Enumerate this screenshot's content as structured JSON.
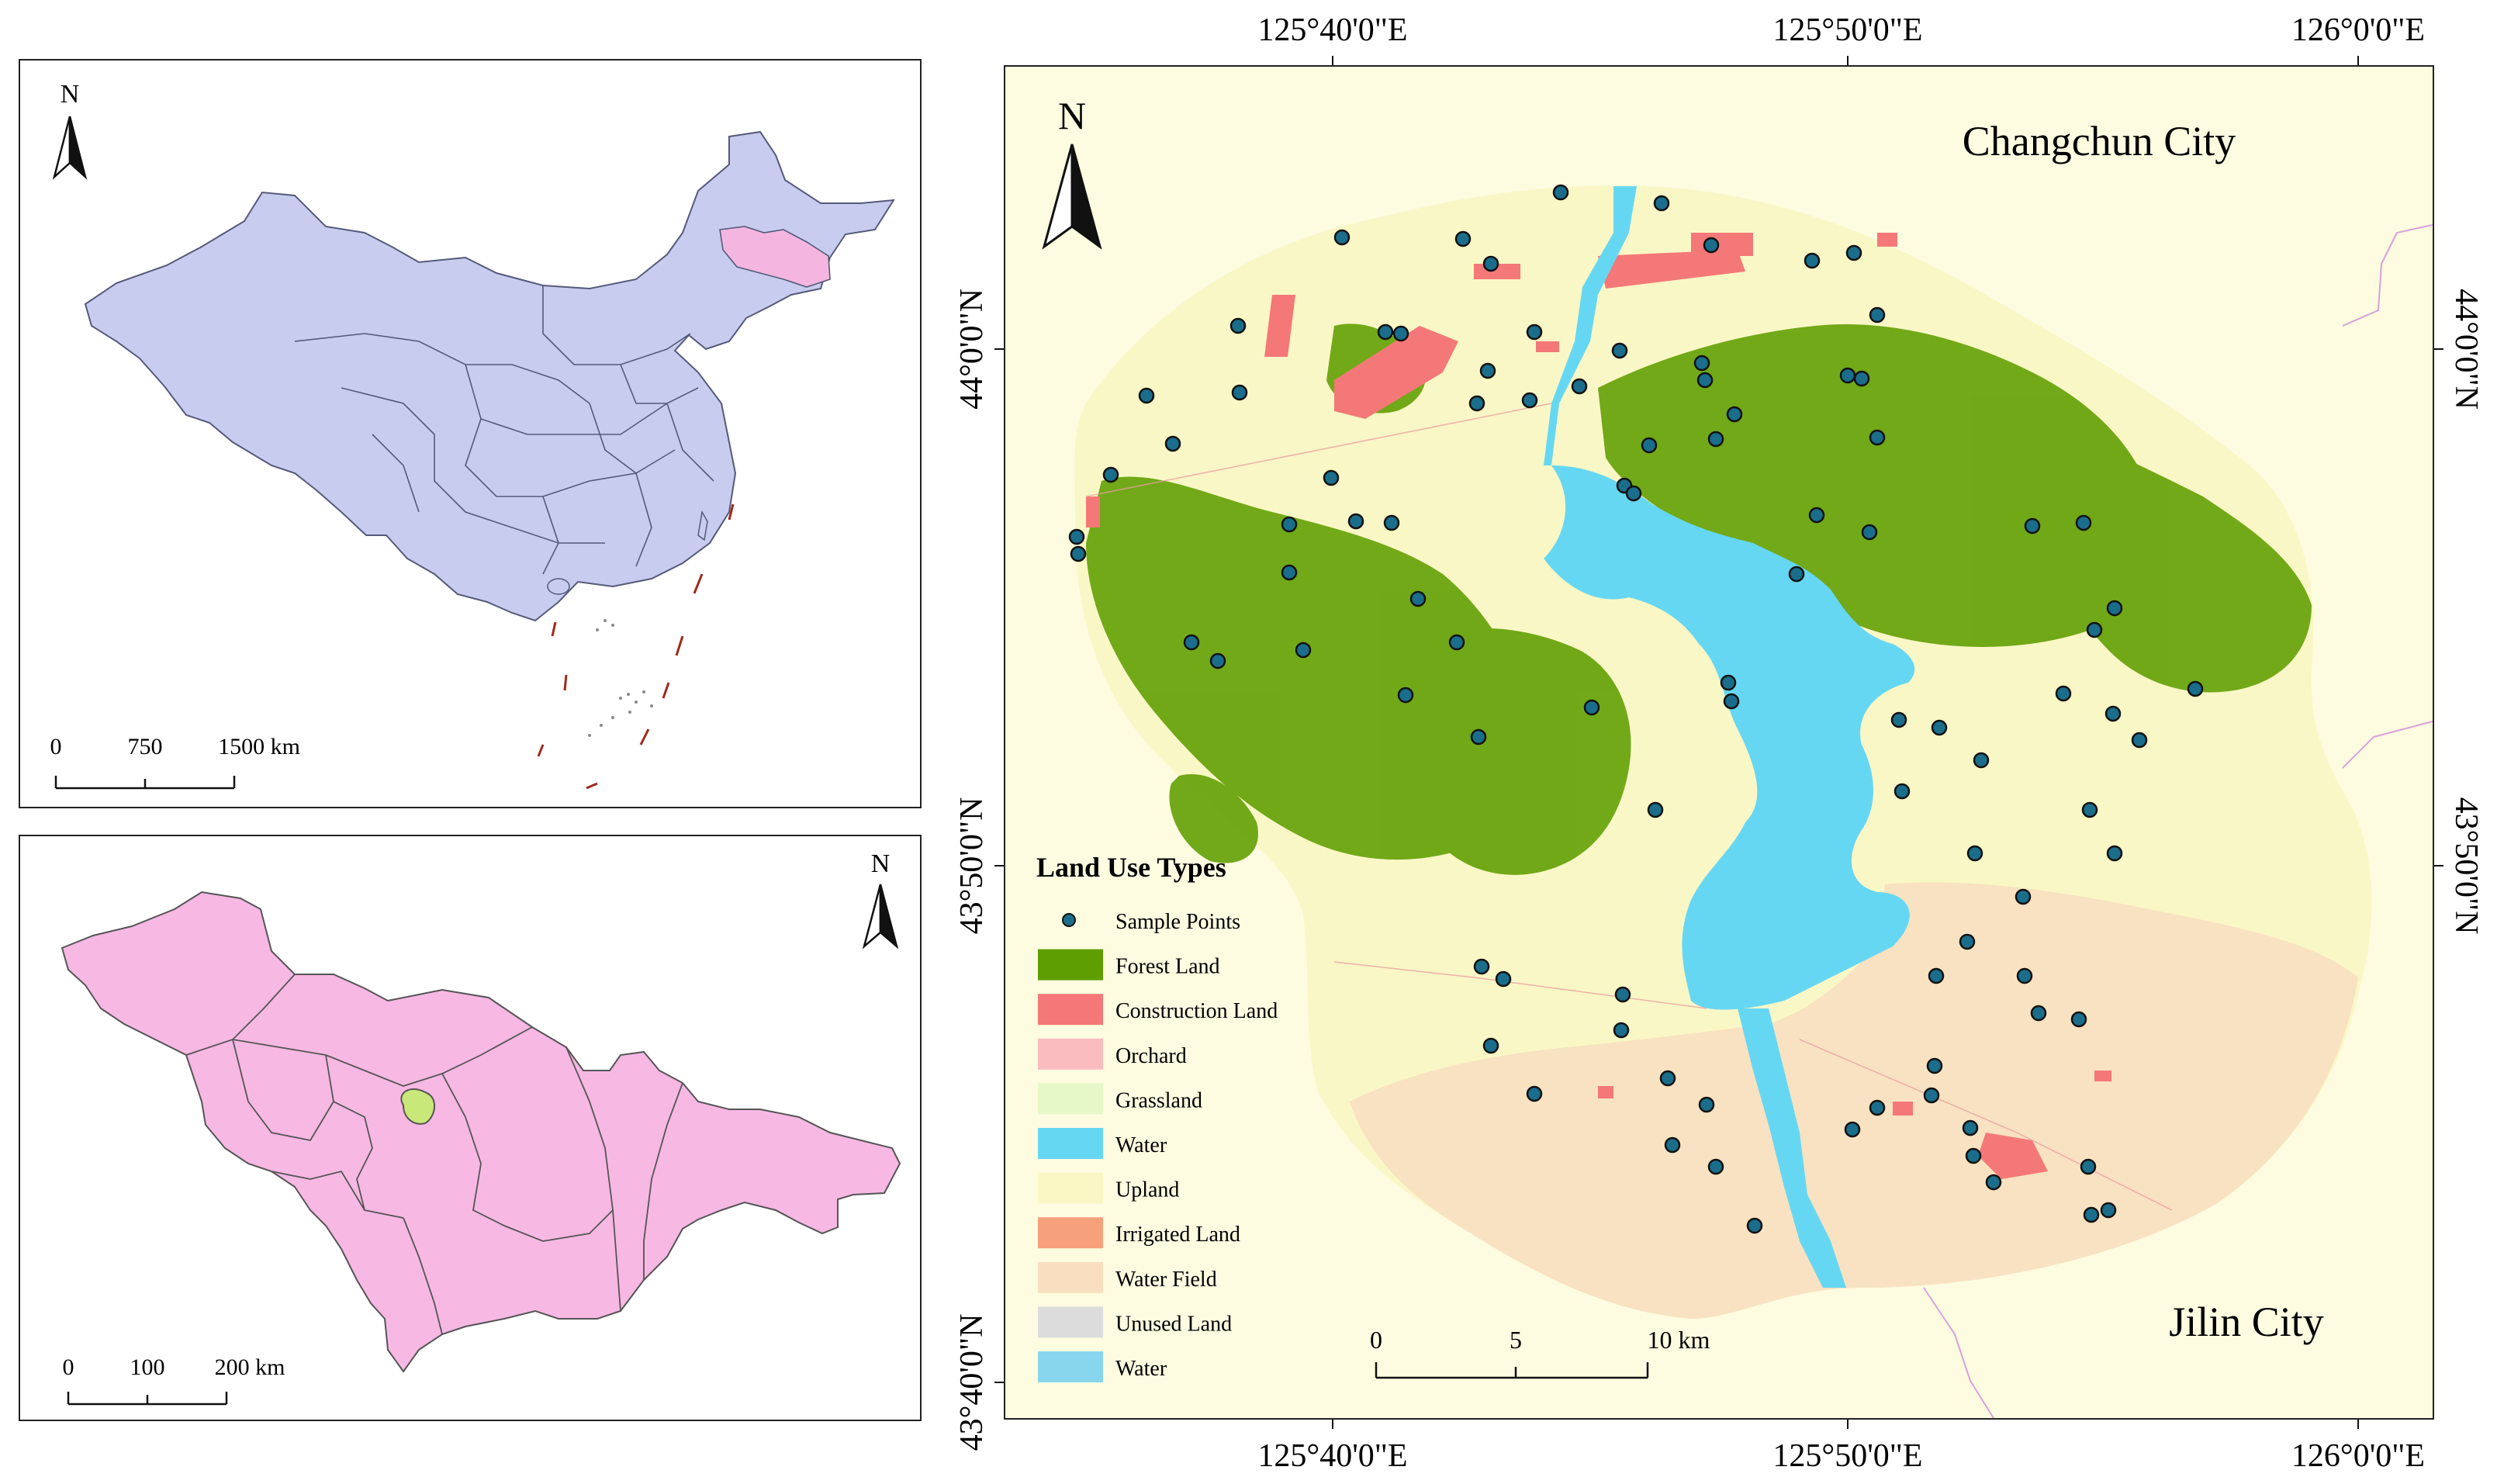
{
  "china_inset": {
    "north_label": "N",
    "scale_labels": [
      "0",
      "750",
      "1500 km"
    ],
    "colors": {
      "land": "#c8cdf0",
      "highlight": "#f4b6e0",
      "border": "#555a7a",
      "dashline": "#9e2a1c"
    }
  },
  "jilin_inset": {
    "north_label": "N",
    "scale_labels": [
      "0",
      "100",
      "200 km"
    ],
    "colors": {
      "land": "#f7b8e4",
      "study_area": "#c9e87a",
      "border": "#555"
    }
  },
  "main_map": {
    "north_label": "N",
    "top_axis_labels": [
      "125°40'0\"E",
      "125°50'0\"E",
      "126°0'0\"E"
    ],
    "bottom_axis_labels": [
      "125°40'0\"E",
      "125°50'0\"E",
      "126°0'0\"E"
    ],
    "left_axis_labels": [
      "44°0'0\"N",
      "43°50'0\"N",
      "43°40'0\"N"
    ],
    "right_axis_labels": [
      "44°0'0\"N",
      "43°50'0\"N"
    ],
    "place_labels": {
      "changchun": "Changchun City",
      "jilin": "Jilin City"
    },
    "scale_labels": [
      "0",
      "5",
      "10 km"
    ],
    "colors": {
      "background": "#fdfbe0",
      "upland": "#faf7c6",
      "forest": "#5e9e00",
      "water": "#66d7f2",
      "water_field": "#f7dfc0",
      "construction": "#f47878",
      "sample_point": "#1a6e8c",
      "boundary": "#d9a0d9"
    }
  },
  "legend": {
    "title": "Land Use Types",
    "items": [
      {
        "label": "Sample Points",
        "kind": "point",
        "color": "#1a6e8c"
      },
      {
        "label": "Forest Land",
        "kind": "swatch",
        "color": "#5e9e00"
      },
      {
        "label": "Construction Land",
        "kind": "swatch",
        "color": "#f47878"
      },
      {
        "label": "Orchard",
        "kind": "swatch",
        "color": "#fbbcc0"
      },
      {
        "label": "Grassland",
        "kind": "swatch",
        "color": "#e6f7c8"
      },
      {
        "label": "Water",
        "kind": "swatch",
        "color": "#66d7f2"
      },
      {
        "label": "Upland",
        "kind": "swatch",
        "color": "#fbf7c4"
      },
      {
        "label": "Irrigated Land",
        "kind": "swatch",
        "color": "#f7a07c"
      },
      {
        "label": "Water Field",
        "kind": "swatch",
        "color": "#f9dfc0"
      },
      {
        "label": "Unused Land",
        "kind": "swatch",
        "color": "#dcdcdc"
      },
      {
        "label": "Water",
        "kind": "swatch",
        "color": "#88d6ee"
      }
    ]
  }
}
